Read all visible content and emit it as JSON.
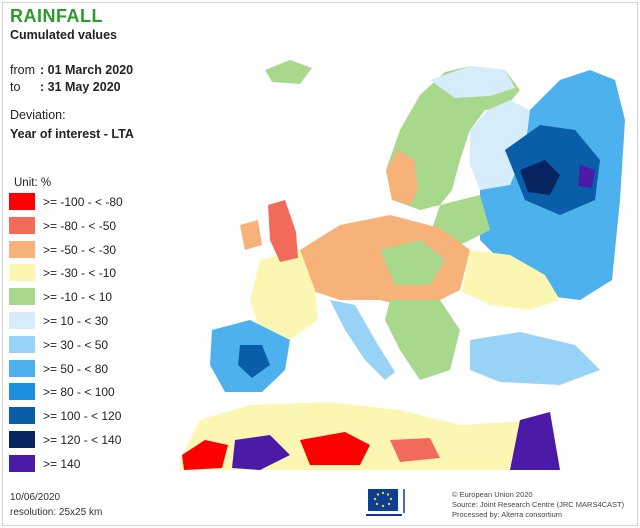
{
  "map": {
    "title": "RAINFALL",
    "subtitle": "Cumulated values",
    "period": {
      "from_label": "from",
      "from_value": ": 01 March 2020",
      "to_label": "to",
      "to_value": ": 31 May 2020"
    },
    "deviation_label": "Deviation:",
    "deviation_value": "Year of interest - LTA"
  },
  "legend": {
    "unit_label": "Unit:",
    "unit": "%",
    "classes": [
      {
        "label": ">= -100 - < -80",
        "color": "#ff0000"
      },
      {
        "label": ">= -80 - < -50",
        "color": "#f26b5a"
      },
      {
        "label": ">= -50 - < -30",
        "color": "#f7b27a"
      },
      {
        "label": ">= -30 - < -10",
        "color": "#fbf7b3"
      },
      {
        "label": ">= -10 - < 10",
        "color": "#a8d88c"
      },
      {
        "label": ">= 10 - < 30",
        "color": "#d6ecfb"
      },
      {
        "label": ">= 30 - < 50",
        "color": "#99d2f7"
      },
      {
        "label": ">= 50 - < 80",
        "color": "#4db1ee"
      },
      {
        "label": ">= 80 - < 100",
        "color": "#1d8fe0"
      },
      {
        "label": ">= 100 - < 120",
        "color": "#085fa8"
      },
      {
        "label": ">= 120 - < 140",
        "color": "#06245f"
      },
      {
        "label": ">= 140",
        "color": "#4b1aa6"
      }
    ]
  },
  "footer": {
    "date": "10/06/2020",
    "resolution": "resolution: 25x25 km",
    "credits": [
      "© European Union 2020",
      "Source: Joint Research Centre (JRC MARS4CAST)",
      "Processed by: Alterra consortium"
    ]
  }
}
